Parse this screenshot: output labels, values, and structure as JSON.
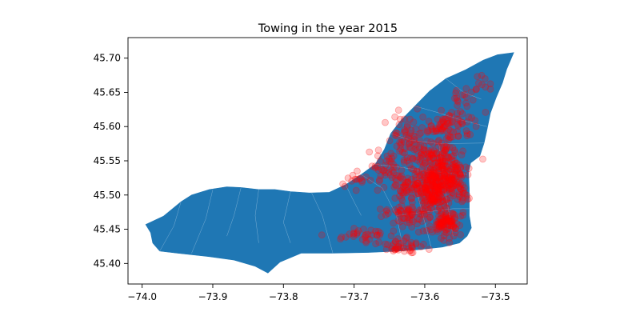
{
  "chart_data": {
    "type": "scatter",
    "title": "Towing in the year 2015",
    "xlabel": "",
    "ylabel": "",
    "xlim": [
      -74.02,
      -73.455
    ],
    "ylim": [
      45.37,
      45.73
    ],
    "x_ticks": [
      -74.0,
      -73.9,
      -73.8,
      -73.7,
      -73.6,
      -73.5
    ],
    "x_tick_labels": [
      "−74.0",
      "−73.9",
      "−73.8",
      "−73.7",
      "−73.6",
      "−73.5"
    ],
    "y_ticks": [
      45.4,
      45.45,
      45.5,
      45.55,
      45.6,
      45.65,
      45.7
    ],
    "y_tick_labels": [
      "45.40",
      "45.45",
      "45.50",
      "45.55",
      "45.60",
      "45.65",
      "45.70"
    ],
    "grid": false,
    "background_map": {
      "fill_color": "#1f77b4",
      "border_color": "#9cc3e0",
      "outline": [
        [
          -73.995,
          45.457
        ],
        [
          -73.97,
          45.469
        ],
        [
          -73.945,
          45.49
        ],
        [
          -73.93,
          45.5
        ],
        [
          -73.905,
          45.508
        ],
        [
          -73.88,
          45.512
        ],
        [
          -73.86,
          45.511
        ],
        [
          -73.835,
          45.508
        ],
        [
          -73.812,
          45.508
        ],
        [
          -73.79,
          45.505
        ],
        [
          -73.763,
          45.503
        ],
        [
          -73.735,
          45.504
        ],
        [
          -73.712,
          45.515
        ],
        [
          -73.69,
          45.53
        ],
        [
          -73.67,
          45.545
        ],
        [
          -73.657,
          45.567
        ],
        [
          -73.648,
          45.59
        ],
        [
          -73.633,
          45.61
        ],
        [
          -73.614,
          45.63
        ],
        [
          -73.593,
          45.652
        ],
        [
          -73.57,
          45.67
        ],
        [
          -73.542,
          45.683
        ],
        [
          -73.517,
          45.697
        ],
        [
          -73.497,
          45.705
        ],
        [
          -73.474,
          45.708
        ],
        [
          -73.484,
          45.684
        ],
        [
          -73.49,
          45.664
        ],
        [
          -73.499,
          45.642
        ],
        [
          -73.507,
          45.62
        ],
        [
          -73.512,
          45.595
        ],
        [
          -73.516,
          45.576
        ],
        [
          -73.522,
          45.557
        ],
        [
          -73.535,
          45.547
        ],
        [
          -73.538,
          45.533
        ],
        [
          -73.537,
          45.51
        ],
        [
          -73.537,
          45.488
        ],
        [
          -73.537,
          45.47
        ],
        [
          -73.534,
          45.452
        ],
        [
          -73.54,
          45.44
        ],
        [
          -73.551,
          45.43
        ],
        [
          -73.575,
          45.424
        ],
        [
          -73.61,
          45.42
        ],
        [
          -73.64,
          45.418
        ],
        [
          -73.68,
          45.416
        ],
        [
          -73.73,
          45.415
        ],
        [
          -73.775,
          45.415
        ],
        [
          -73.805,
          45.402
        ],
        [
          -73.822,
          45.386
        ],
        [
          -73.84,
          45.396
        ],
        [
          -73.87,
          45.405
        ],
        [
          -73.905,
          45.41
        ],
        [
          -73.95,
          45.415
        ],
        [
          -73.975,
          45.418
        ],
        [
          -73.985,
          45.43
        ],
        [
          -73.988,
          45.445
        ]
      ],
      "district_lines": [
        [
          [
            -73.76,
            45.503
          ],
          [
            -73.745,
            45.47
          ],
          [
            -73.73,
            45.415
          ]
        ],
        [
          [
            -73.835,
            45.508
          ],
          [
            -73.84,
            45.47
          ],
          [
            -73.835,
            45.43
          ]
        ],
        [
          [
            -73.9,
            45.508
          ],
          [
            -73.91,
            45.465
          ],
          [
            -73.93,
            45.415
          ]
        ],
        [
          [
            -73.945,
            45.49
          ],
          [
            -73.955,
            45.455
          ],
          [
            -73.975,
            45.418
          ]
        ],
        [
          [
            -73.69,
            45.53
          ],
          [
            -73.66,
            45.51
          ],
          [
            -73.64,
            45.47
          ],
          [
            -73.63,
            45.42
          ]
        ],
        [
          [
            -73.67,
            45.545
          ],
          [
            -73.63,
            45.54
          ],
          [
            -73.6,
            45.535
          ],
          [
            -73.54,
            45.53
          ]
        ],
        [
          [
            -73.648,
            45.59
          ],
          [
            -73.62,
            45.58
          ],
          [
            -73.58,
            45.575
          ],
          [
            -73.516,
            45.576
          ]
        ],
        [
          [
            -73.614,
            45.63
          ],
          [
            -73.58,
            45.62
          ],
          [
            -73.55,
            45.61
          ],
          [
            -73.512,
            45.6
          ]
        ],
        [
          [
            -73.57,
            45.67
          ],
          [
            -73.545,
            45.65
          ],
          [
            -73.52,
            45.64
          ]
        ],
        [
          [
            -73.64,
            45.47
          ],
          [
            -73.6,
            45.475
          ],
          [
            -73.56,
            45.48
          ],
          [
            -73.537,
            45.48
          ]
        ],
        [
          [
            -73.61,
            45.54
          ],
          [
            -73.61,
            45.5
          ],
          [
            -73.6,
            45.46
          ],
          [
            -73.59,
            45.42
          ]
        ],
        [
          [
            -73.58,
            45.575
          ],
          [
            -73.575,
            45.54
          ],
          [
            -73.57,
            45.5
          ],
          [
            -73.56,
            45.44
          ]
        ],
        [
          [
            -73.86,
            45.511
          ],
          [
            -73.87,
            45.47
          ],
          [
            -73.88,
            45.44
          ]
        ],
        [
          [
            -73.79,
            45.505
          ],
          [
            -73.8,
            45.46
          ],
          [
            -73.79,
            45.43
          ]
        ],
        [
          [
            -73.712,
            45.515
          ],
          [
            -73.7,
            45.49
          ],
          [
            -73.69,
            45.47
          ]
        ]
      ]
    },
    "series": [
      {
        "marker_color": "#ff0000",
        "marker_alpha": 0.22,
        "clusters": [
          {
            "cx": -73.578,
            "cy": 45.524,
            "sx": 0.014,
            "sy": 0.013,
            "n": 140
          },
          {
            "cx": -73.587,
            "cy": 45.495,
            "sx": 0.01,
            "sy": 0.01,
            "n": 90
          },
          {
            "cx": -73.572,
            "cy": 45.458,
            "sx": 0.01,
            "sy": 0.01,
            "n": 100
          },
          {
            "cx": -73.6,
            "cy": 45.518,
            "sx": 0.02,
            "sy": 0.012,
            "n": 90
          },
          {
            "cx": -73.59,
            "cy": 45.56,
            "sx": 0.022,
            "sy": 0.014,
            "n": 100
          },
          {
            "cx": -73.565,
            "cy": 45.6,
            "sx": 0.02,
            "sy": 0.01,
            "n": 70
          },
          {
            "cx": -73.622,
            "cy": 45.47,
            "sx": 0.018,
            "sy": 0.008,
            "n": 60
          },
          {
            "cx": -73.628,
            "cy": 45.425,
            "sx": 0.018,
            "sy": 0.007,
            "n": 40
          },
          {
            "cx": -73.68,
            "cy": 45.44,
            "sx": 0.025,
            "sy": 0.006,
            "n": 35
          },
          {
            "cx": -73.66,
            "cy": 45.54,
            "sx": 0.012,
            "sy": 0.012,
            "n": 35
          },
          {
            "cx": -73.63,
            "cy": 45.59,
            "sx": 0.015,
            "sy": 0.015,
            "n": 45
          },
          {
            "cx": -73.56,
            "cy": 45.54,
            "sx": 0.012,
            "sy": 0.01,
            "n": 40
          },
          {
            "cx": -73.545,
            "cy": 45.64,
            "sx": 0.015,
            "sy": 0.012,
            "n": 20
          },
          {
            "cx": -73.52,
            "cy": 45.665,
            "sx": 0.008,
            "sy": 0.006,
            "n": 8
          },
          {
            "cx": -73.625,
            "cy": 45.51,
            "sx": 0.01,
            "sy": 0.012,
            "n": 30
          },
          {
            "cx": -73.7,
            "cy": 45.52,
            "sx": 0.012,
            "sy": 0.008,
            "n": 15
          },
          {
            "cx": -73.55,
            "cy": 45.5,
            "sx": 0.008,
            "sy": 0.015,
            "n": 30
          }
        ]
      }
    ]
  }
}
